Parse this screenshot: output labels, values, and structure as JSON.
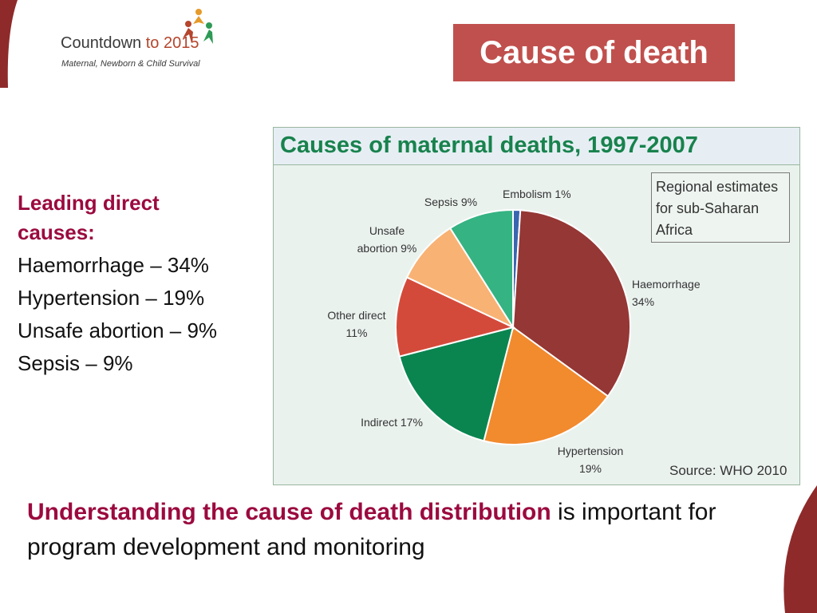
{
  "logo": {
    "brand_main": "Countdown",
    "brand_accent": "to 2015",
    "subtitle": "Maternal, Newborn & Child Survival"
  },
  "slide_title": "Cause of death",
  "left_panel": {
    "heading": "Leading direct causes:",
    "items": [
      "Haemorrhage – 34%",
      "Hypertension – 19%",
      "Unsafe abortion – 9%",
      "Sepsis – 9%"
    ]
  },
  "chart_data": {
    "type": "pie",
    "title": "Causes of maternal deaths, 1997-2007",
    "subtitle": "Regional estimates for sub-Saharan Africa",
    "source": "Source: WHO 2010",
    "slices": [
      {
        "label": "Embolism",
        "value": 1,
        "color": "#3a66b0",
        "label_lines": [
          "Embolism 1%"
        ]
      },
      {
        "label": "Haemorrhage",
        "value": 34,
        "color": "#953735",
        "label_lines": [
          "Haemorrhage",
          "34%"
        ]
      },
      {
        "label": "Hypertension",
        "value": 19,
        "color": "#f28a2e",
        "label_lines": [
          "Hypertension",
          "19%"
        ]
      },
      {
        "label": "Indirect",
        "value": 17,
        "color": "#0a8550",
        "label_lines": [
          "Indirect 17%"
        ]
      },
      {
        "label": "Other direct",
        "value": 11,
        "color": "#d44a3a",
        "label_lines": [
          "Other direct",
          "11%"
        ]
      },
      {
        "label": "Unsafe abortion",
        "value": 9,
        "color": "#f8b274",
        "label_lines": [
          "Unsafe",
          "abortion 9%"
        ]
      },
      {
        "label": "Sepsis",
        "value": 9,
        "color": "#35b383",
        "label_lines": [
          "Sepsis 9%"
        ]
      }
    ]
  },
  "bottom_text": {
    "highlight": "Understanding the cause of death distribution",
    "rest": " is important for program development and monitoring"
  },
  "colors": {
    "title_bg": "#c0504d",
    "accent_text": "#9b0a3f",
    "chart_title": "#18824d",
    "corner": "#8f2a2a"
  }
}
